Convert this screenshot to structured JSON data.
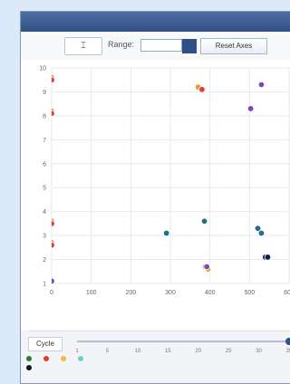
{
  "window": {
    "title": ""
  },
  "toolbar": {
    "range_label": "Range:",
    "range_value": "",
    "reset_label": "Reset Axes"
  },
  "chart_data": {
    "type": "scatter",
    "xlabel": "",
    "ylabel": "",
    "xlim": [
      0,
      600
    ],
    "ylim": [
      1,
      10
    ],
    "xticks": [
      "0",
      "100",
      "200",
      "300",
      "400",
      "500",
      "600"
    ],
    "yticks": [
      "1",
      "2",
      "3",
      "4",
      "5",
      "6",
      "7",
      "8",
      "9",
      "10"
    ],
    "grid": true,
    "series": [
      {
        "color": "#1f6f8b",
        "points": [
          [
            290,
            3.1
          ],
          [
            386,
            3.6
          ],
          [
            521,
            3.3
          ],
          [
            530,
            3.1
          ]
        ]
      },
      {
        "color": "#0b1f57",
        "points": [
          [
            540,
            2.1
          ],
          [
            546,
            2.1
          ]
        ]
      },
      {
        "color": "#e69c24",
        "points": [
          [
            0,
            9.6
          ],
          [
            0,
            8.2
          ],
          [
            0,
            3.6
          ],
          [
            0,
            2.7
          ],
          [
            370,
            9.2
          ],
          [
            388,
            1.7
          ],
          [
            395,
            1.6
          ]
        ]
      },
      {
        "color": "#e03a3a",
        "points": [
          [
            0,
            9.5
          ],
          [
            0,
            8.1
          ],
          [
            0,
            3.5
          ],
          [
            0,
            2.6
          ],
          [
            380,
            9.1
          ]
        ]
      },
      {
        "color": "#7a4ab0",
        "points": [
          [
            0,
            1.1
          ],
          [
            392,
            1.7
          ],
          [
            503,
            8.3
          ],
          [
            530,
            9.3
          ]
        ]
      }
    ]
  },
  "slider": {
    "label": "Cycle",
    "ticks": [
      "1",
      "5",
      "10",
      "15",
      "20",
      "25",
      "30",
      "35"
    ]
  },
  "legend": {
    "items": [
      {
        "label": "",
        "color": "#2e7d32"
      },
      {
        "label": "",
        "color": "#e53935"
      },
      {
        "label": "",
        "color": "#f6b93b"
      },
      {
        "label": "",
        "color": "#6fcfc5"
      },
      {
        "label": "",
        "color": "#111111"
      }
    ]
  }
}
